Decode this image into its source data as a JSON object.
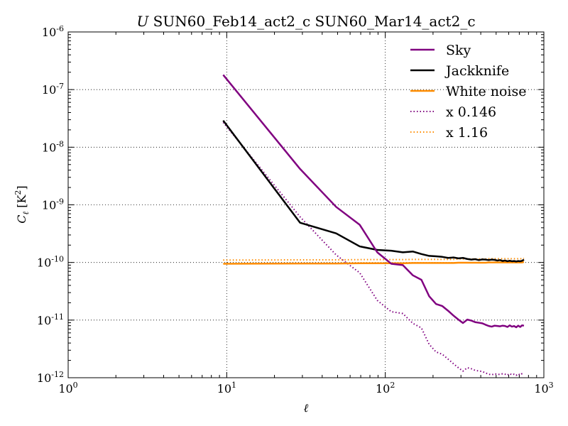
{
  "chart_data": {
    "type": "line",
    "title_prefix": "U",
    "title_rest": " SUN60_Feb14_act2_c SUN60_Mar14_act2_c",
    "xlabel": "ℓ",
    "ylabel_main": "C",
    "ylabel_sub": "ℓ",
    "ylabel_unit_open": " [K",
    "ylabel_unit_exp": "2",
    "ylabel_unit_close": "]",
    "x_scale": "log",
    "y_scale": "log",
    "xlim": [
      1,
      1000
    ],
    "ylim": [
      1e-12,
      1e-06
    ],
    "grid": true,
    "legend_position": "top-right",
    "x_ticks": [
      {
        "value": 1,
        "base": "10",
        "exp": "0"
      },
      {
        "value": 10,
        "base": "10",
        "exp": "1"
      },
      {
        "value": 100,
        "base": "10",
        "exp": "2"
      },
      {
        "value": 1000,
        "base": "10",
        "exp": "3"
      }
    ],
    "y_ticks": [
      {
        "value": 1e-12,
        "base": "10",
        "exp": "-12"
      },
      {
        "value": 1e-11,
        "base": "10",
        "exp": "-11"
      },
      {
        "value": 1e-10,
        "base": "10",
        "exp": "-10"
      },
      {
        "value": 1e-09,
        "base": "10",
        "exp": "-9"
      },
      {
        "value": 1e-08,
        "base": "10",
        "exp": "-8"
      },
      {
        "value": 1e-07,
        "base": "10",
        "exp": "-7"
      },
      {
        "value": 1e-06,
        "base": "10",
        "exp": "-6"
      }
    ],
    "series": [
      {
        "name": "Sky",
        "color": "#800080",
        "style": "solid",
        "x": [
          9.5,
          29,
          49,
          69,
          89,
          109,
          129,
          149,
          169,
          189,
          209,
          229,
          249,
          269,
          289,
          309,
          329,
          349,
          369,
          389,
          409,
          429,
          449,
          469,
          489,
          509,
          529,
          549,
          569,
          589,
          609,
          629,
          649,
          669,
          689,
          709,
          729,
          749
        ],
        "y": [
          1.8e-07,
          4.2e-09,
          9.2e-10,
          4.5e-10,
          1.5e-10,
          9.5e-11,
          9e-11,
          6e-11,
          5e-11,
          2.6e-11,
          1.9e-11,
          1.75e-11,
          1.45e-11,
          1.2e-11,
          1.02e-11,
          8.9e-12,
          1.02e-11,
          9.8e-12,
          9.2e-12,
          9e-12,
          8.8e-12,
          8.3e-12,
          7.9e-12,
          7.7e-12,
          8e-12,
          7.9e-12,
          7.8e-12,
          8e-12,
          7.9e-12,
          7.6e-12,
          8.1e-12,
          7.7e-12,
          7.9e-12,
          7.5e-12,
          8e-12,
          7.6e-12,
          8.1e-12,
          8e-12
        ]
      },
      {
        "name": "Jackknife",
        "color": "#000000",
        "style": "solid",
        "x": [
          9.5,
          29,
          49,
          69,
          89,
          109,
          129,
          149,
          169,
          189,
          209,
          229,
          249,
          269,
          289,
          309,
          329,
          349,
          369,
          389,
          409,
          429,
          449,
          469,
          489,
          509,
          529,
          549,
          569,
          589,
          609,
          629,
          649,
          669,
          689,
          709,
          729,
          749
        ],
        "y": [
          2.9e-08,
          4.9e-10,
          3.2e-10,
          1.9e-10,
          1.65e-10,
          1.6e-10,
          1.5e-10,
          1.55e-10,
          1.4e-10,
          1.3e-10,
          1.28e-10,
          1.25e-10,
          1.2e-10,
          1.22e-10,
          1.18e-10,
          1.2e-10,
          1.15e-10,
          1.12e-10,
          1.14e-10,
          1.1e-10,
          1.13e-10,
          1.12e-10,
          1.1e-10,
          1.12e-10,
          1.11e-10,
          1.08e-10,
          1.1e-10,
          1.06e-10,
          1.08e-10,
          1.05e-10,
          1.07e-10,
          1.05e-10,
          1.06e-10,
          1.04e-10,
          1.06e-10,
          1.05e-10,
          1.07e-10,
          1.12e-10
        ]
      },
      {
        "name": "White noise",
        "color": "#ff8c00",
        "style": "solid",
        "x": [
          9.5,
          29,
          49,
          69,
          89,
          109,
          129,
          149,
          169,
          189,
          209,
          229,
          249,
          269,
          289,
          309,
          329,
          349,
          369,
          389,
          409,
          429,
          449,
          469,
          489,
          509,
          529,
          549,
          569,
          589,
          609,
          629,
          649,
          669,
          689,
          709,
          729,
          749
        ],
        "y": [
          9.5e-11,
          9.6e-11,
          9.6e-11,
          9.7e-11,
          9.7e-11,
          9.7e-11,
          9.7e-11,
          9.8e-11,
          9.8e-11,
          9.8e-11,
          9.8e-11,
          9.8e-11,
          9.8e-11,
          9.8e-11,
          9.9e-11,
          9.9e-11,
          9.9e-11,
          9.9e-11,
          9.9e-11,
          9.9e-11,
          9.9e-11,
          9.9e-11,
          1e-10,
          1e-10,
          1e-10,
          1e-10,
          1e-10,
          1e-10,
          1e-10,
          1e-10,
          1e-10,
          1e-10,
          1e-10,
          1e-10,
          1e-10,
          1e-10,
          1e-10,
          1.02e-10
        ]
      },
      {
        "name": "x 0.146",
        "color": "#800080",
        "style": "dotted",
        "x": [
          9.5,
          29,
          49,
          69,
          89,
          109,
          129,
          149,
          169,
          189,
          209,
          229,
          249,
          269,
          289,
          309,
          329,
          349,
          369,
          389,
          409,
          429,
          449,
          469,
          489,
          509,
          529,
          549,
          569,
          589,
          609,
          629,
          649,
          669,
          689,
          709,
          729,
          749
        ],
        "y": [
          2.7e-08,
          6.2e-10,
          1.35e-10,
          6.6e-11,
          2.2e-11,
          1.4e-11,
          1.3e-11,
          8.8e-12,
          7.3e-12,
          3.8e-12,
          2.8e-12,
          2.55e-12,
          2.1e-12,
          1.75e-12,
          1.49e-12,
          1.3e-12,
          1.49e-12,
          1.43e-12,
          1.34e-12,
          1.31e-12,
          1.28e-12,
          1.21e-12,
          1.15e-12,
          1.12e-12,
          1.17e-12,
          1.15e-12,
          1.14e-12,
          1.17e-12,
          1.15e-12,
          1.11e-12,
          1.18e-12,
          1.12e-12,
          1.15e-12,
          1.1e-12,
          1.17e-12,
          1.11e-12,
          1.18e-12,
          1.17e-12
        ]
      },
      {
        "name": "x 1.16",
        "color": "#ff8c00",
        "style": "dotted",
        "x": [
          9.5,
          29,
          49,
          69,
          89,
          109,
          129,
          149,
          169,
          189,
          209,
          229,
          249,
          269,
          289,
          309,
          329,
          349,
          369,
          389,
          409,
          429,
          449,
          469,
          489,
          509,
          529,
          549,
          569,
          589,
          609,
          629,
          649,
          669,
          689,
          709,
          729,
          749
        ],
        "y": [
          1.1e-10,
          1.11e-10,
          1.11e-10,
          1.12e-10,
          1.12e-10,
          1.12e-10,
          1.12e-10,
          1.13e-10,
          1.13e-10,
          1.13e-10,
          1.13e-10,
          1.13e-10,
          1.13e-10,
          1.13e-10,
          1.15e-10,
          1.15e-10,
          1.15e-10,
          1.15e-10,
          1.15e-10,
          1.15e-10,
          1.15e-10,
          1.15e-10,
          1.16e-10,
          1.16e-10,
          1.16e-10,
          1.16e-10,
          1.16e-10,
          1.16e-10,
          1.16e-10,
          1.16e-10,
          1.16e-10,
          1.16e-10,
          1.16e-10,
          1.16e-10,
          1.16e-10,
          1.16e-10,
          1.16e-10,
          1.18e-10
        ]
      }
    ]
  }
}
